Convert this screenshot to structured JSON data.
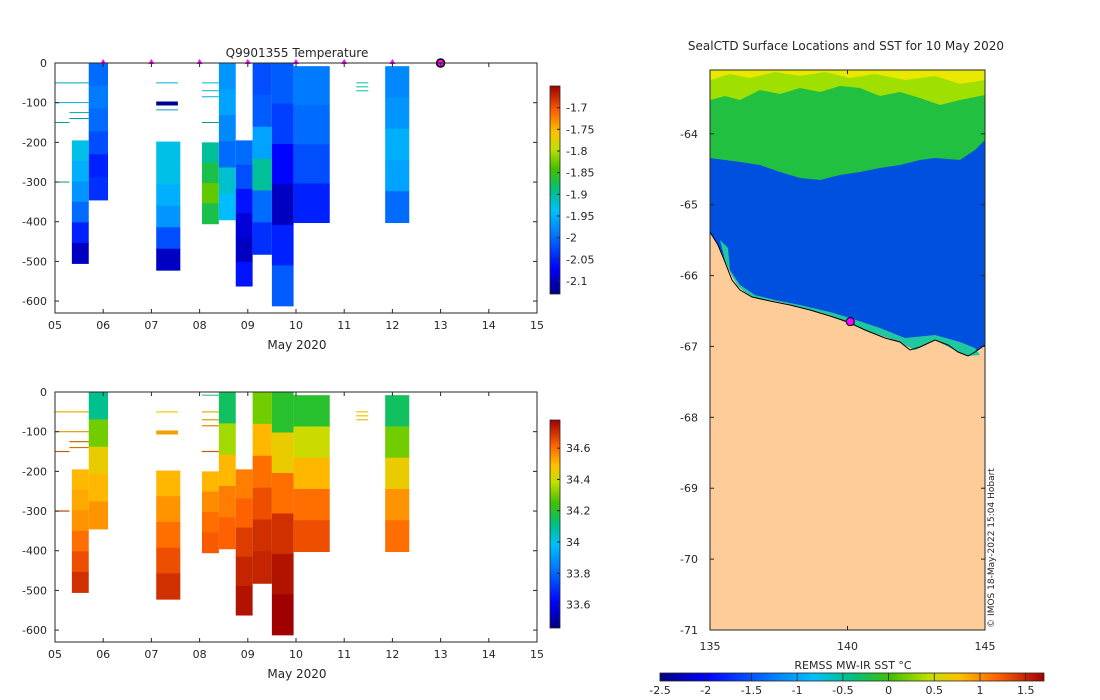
{
  "chart_data": [
    {
      "type": "heatmap",
      "title": "Q9901355  Temperature",
      "xlabel": "May 2020",
      "ylabel": "",
      "xlim": [
        5,
        15
      ],
      "ylim": [
        -630,
        0
      ],
      "x_ticks": [
        "05",
        "06",
        "07",
        "08",
        "09",
        "10",
        "11",
        "12",
        "13",
        "14",
        "15"
      ],
      "y_ticks": [
        0,
        -100,
        -200,
        -300,
        -400,
        -500,
        -600
      ],
      "colorbar": {
        "min": -2.13,
        "max": -1.65,
        "ticks": [
          "-1.7",
          "-1.75",
          "-1.8",
          "-1.85",
          "-1.9",
          "-1.95",
          "-2",
          "-2.05",
          "-2.1"
        ]
      },
      "surface_markers_day": [
        6.0,
        7.0,
        8.0,
        9.0,
        10.0,
        11.0,
        12.0
      ],
      "current_position_day": 13.0,
      "profiles": [
        {
          "x0": 5.35,
          "x1": 5.7,
          "top": -195,
          "bottom": -505,
          "values": [
            -1.93,
            -1.95,
            -1.97,
            -2.0,
            -2.05,
            -2.1
          ]
        },
        {
          "x0": 5.7,
          "x1": 6.1,
          "top": 0,
          "bottom": -345,
          "values": [
            -2.0,
            -1.99,
            -2.0,
            -2.02,
            -2.05,
            -2.04
          ]
        },
        {
          "x0": 7.1,
          "x1": 7.6,
          "top": -198,
          "bottom": -522,
          "values": [
            -1.93,
            -1.93,
            -1.95,
            -1.97,
            -2.02,
            -2.1
          ]
        },
        {
          "x0": 8.05,
          "x1": 8.4,
          "top": -200,
          "bottom": -405,
          "values": [
            -1.9,
            -1.87,
            -1.83,
            -1.87
          ]
        },
        {
          "x0": 8.4,
          "x1": 8.75,
          "top": 0,
          "bottom": -395,
          "values": [
            -1.97,
            -1.96,
            -1.98,
            -2.0,
            -1.92,
            -1.94
          ]
        },
        {
          "x0": 8.75,
          "x1": 9.1,
          "top": -195,
          "bottom": -562,
          "values": [
            -2.0,
            -2.02,
            -2.06,
            -2.09,
            -2.1,
            -2.06
          ]
        },
        {
          "x0": 9.1,
          "x1": 9.5,
          "top": 0,
          "bottom": -482,
          "values": [
            -2.02,
            -2.01,
            -1.96,
            -1.9,
            -2.0,
            -2.04
          ]
        },
        {
          "x0": 9.5,
          "x1": 9.95,
          "top": 0,
          "bottom": -612,
          "values": [
            -2.01,
            -2.03,
            -2.07,
            -2.1,
            -2.05,
            -2.01
          ]
        },
        {
          "x0": 9.95,
          "x1": 10.7,
          "top": -8,
          "bottom": -402,
          "values": [
            -1.99,
            -2.0,
            -2.02,
            -2.05
          ]
        },
        {
          "x0": 11.85,
          "x1": 12.35,
          "top": -8,
          "bottom": -402,
          "values": [
            -1.98,
            -1.97,
            -1.95,
            -1.96,
            -2.0
          ]
        }
      ]
    },
    {
      "type": "heatmap",
      "title": "",
      "xlabel": "May 2020",
      "ylabel": "",
      "xlim": [
        5,
        15
      ],
      "ylim": [
        -630,
        0
      ],
      "x_ticks": [
        "05",
        "06",
        "07",
        "08",
        "09",
        "10",
        "11",
        "12",
        "13",
        "14",
        "15"
      ],
      "y_ticks": [
        0,
        -100,
        -200,
        -300,
        -400,
        -500,
        -600
      ],
      "colorbar": {
        "min": 33.45,
        "max": 34.78,
        "ticks": [
          "34.6",
          "34.4",
          "34.2",
          "34",
          "33.8",
          "33.6"
        ]
      },
      "profiles": [
        {
          "x0": 5.35,
          "x1": 5.7,
          "top": -195,
          "bottom": -505,
          "values": [
            34.5,
            34.52,
            34.55,
            34.6,
            34.65,
            34.7
          ]
        },
        {
          "x0": 5.7,
          "x1": 6.1,
          "top": 0,
          "bottom": -345,
          "values": [
            34.1,
            34.3,
            34.45,
            34.5,
            34.55
          ]
        },
        {
          "x0": 7.1,
          "x1": 7.6,
          "top": -198,
          "bottom": -522,
          "values": [
            34.5,
            34.55,
            34.6,
            34.65,
            34.7
          ]
        },
        {
          "x0": 8.05,
          "x1": 8.4,
          "top": -200,
          "bottom": -405,
          "values": [
            34.5,
            34.56,
            34.6,
            34.63
          ]
        },
        {
          "x0": 8.4,
          "x1": 8.75,
          "top": 0,
          "bottom": -395,
          "values": [
            34.15,
            34.35,
            34.5,
            34.58,
            34.62
          ]
        },
        {
          "x0": 8.75,
          "x1": 9.1,
          "top": -195,
          "bottom": -562,
          "values": [
            34.58,
            34.62,
            34.68,
            34.72,
            34.75
          ]
        },
        {
          "x0": 9.1,
          "x1": 9.5,
          "top": 0,
          "bottom": -482,
          "values": [
            34.3,
            34.5,
            34.6,
            34.65,
            34.7,
            34.72
          ]
        },
        {
          "x0": 9.5,
          "x1": 9.95,
          "top": 0,
          "bottom": -612,
          "values": [
            34.2,
            34.45,
            34.6,
            34.7,
            34.75,
            34.78
          ]
        },
        {
          "x0": 9.95,
          "x1": 10.7,
          "top": -8,
          "bottom": -402,
          "values": [
            34.2,
            34.4,
            34.5,
            34.6,
            34.65
          ]
        },
        {
          "x0": 11.85,
          "x1": 12.35,
          "top": -8,
          "bottom": -402,
          "values": [
            34.15,
            34.3,
            34.45,
            34.55,
            34.6
          ]
        }
      ]
    },
    {
      "type": "heatmap",
      "title": "SealCTD Surface Locations and SST for 10 May 2020",
      "xlabel": "",
      "ylabel": "",
      "xlim": [
        135,
        145
      ],
      "ylim": [
        -71,
        -63.1
      ],
      "x_ticks": [
        "135",
        "140",
        "145"
      ],
      "y_ticks": [
        "-64",
        "-65",
        "-66",
        "-67",
        "-68",
        "-69",
        "-70",
        "-71"
      ],
      "colorbar": {
        "label": "REMSS MW-IR SST °C",
        "min": -2.5,
        "max": 1.7,
        "ticks": [
          "-2.5",
          "-2",
          "-1.5",
          "-1",
          "-0.5",
          "0",
          "0.5",
          "1",
          "1.5"
        ]
      },
      "seal_position": {
        "lon": 140.1,
        "lat": -66.65
      },
      "land_color": "#fdcc99",
      "credit": "© IMOS 18-May-2022 15:04 Hobart"
    }
  ]
}
